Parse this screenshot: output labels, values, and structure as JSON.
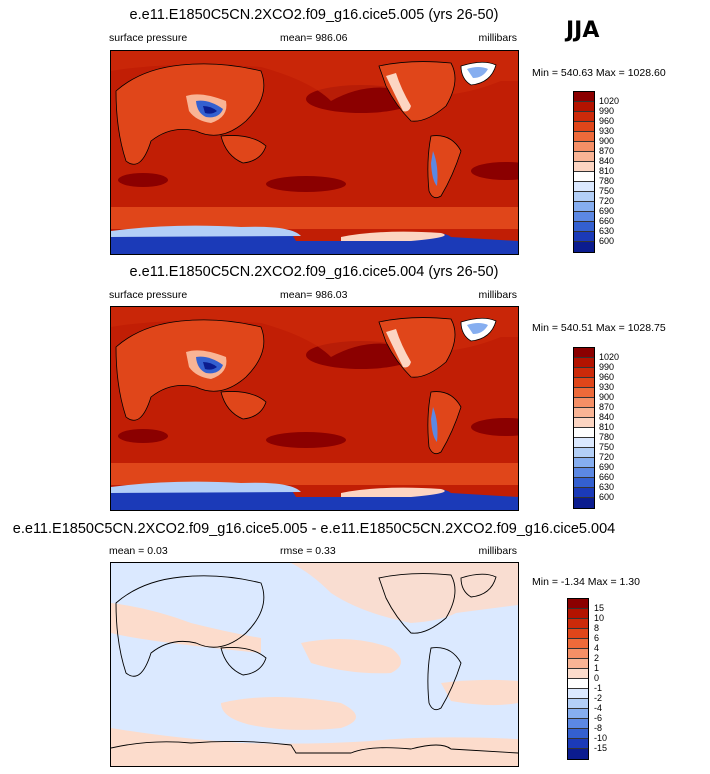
{
  "season": "JJA",
  "panels": [
    {
      "title": "e.e11.E1850C5CN.2XCO2.f09_g16.cice5.005 (yrs 26-50)",
      "left_label": "surface pressure",
      "center_label": "mean= 986.06",
      "right_label": "millibars",
      "minmax": "Min = 540.63 Max = 1028.60",
      "colorbar_labels": [
        "1020",
        "990",
        "960",
        "930",
        "900",
        "870",
        "840",
        "810",
        "780",
        "750",
        "720",
        "690",
        "660",
        "630",
        "600"
      ],
      "colorbar_colors": [
        "#8b0000",
        "#b31300",
        "#cc2a0a",
        "#e0461a",
        "#ee6a3a",
        "#f58f66",
        "#f9b495",
        "#fcd5c2",
        "#ffffff",
        "#dbe9ff",
        "#b3cff7",
        "#86aef0",
        "#5c88e3",
        "#3460d0",
        "#1b3ab8",
        "#0b1c8f"
      ]
    },
    {
      "title": "e.e11.E1850C5CN.2XCO2.f09_g16.cice5.004 (yrs 26-50)",
      "left_label": "surface pressure",
      "center_label": "mean= 986.03",
      "right_label": "millibars",
      "minmax": "Min = 540.51 Max = 1028.75",
      "colorbar_labels": [
        "1020",
        "990",
        "960",
        "930",
        "900",
        "870",
        "840",
        "810",
        "780",
        "750",
        "720",
        "690",
        "660",
        "630",
        "600"
      ],
      "colorbar_colors": [
        "#8b0000",
        "#b31300",
        "#cc2a0a",
        "#e0461a",
        "#ee6a3a",
        "#f58f66",
        "#f9b495",
        "#fcd5c2",
        "#ffffff",
        "#dbe9ff",
        "#b3cff7",
        "#86aef0",
        "#5c88e3",
        "#3460d0",
        "#1b3ab8",
        "#0b1c8f"
      ]
    },
    {
      "title": "e.e11.E1850C5CN.2XCO2.f09_g16.cice5.005 - e.e11.E1850C5CN.2XCO2.f09_g16.cice5.004",
      "left_label": "mean =  0.03",
      "center_label": "rmse =  0.33",
      "right_label": "millibars",
      "minmax": "Min =  -1.34 Max =   1.30",
      "colorbar_labels": [
        "15",
        "10",
        "8",
        "6",
        "4",
        "2",
        "1",
        "0",
        "-1",
        "-2",
        "-4",
        "-6",
        "-8",
        "-10",
        "-15"
      ],
      "colorbar_colors": [
        "#8b0000",
        "#b31300",
        "#cc2a0a",
        "#e0461a",
        "#ee6a3a",
        "#f58f66",
        "#f9b495",
        "#fcdccc",
        "#ffffff",
        "#dbe9ff",
        "#b3cff7",
        "#86aef0",
        "#5c88e3",
        "#3460d0",
        "#1b3ab8",
        "#0b1c8f"
      ]
    }
  ],
  "chart_data": [
    {
      "type": "heatmap",
      "title": "e.e11.E1850C5CN.2XCO2.f09_g16.cice5.005 (yrs 26-50)",
      "variable": "surface pressure",
      "units": "millibars",
      "season": "JJA",
      "mean": 986.06,
      "min": 540.63,
      "max": 1028.6,
      "levels": [
        600,
        630,
        660,
        690,
        720,
        750,
        780,
        810,
        840,
        870,
        900,
        930,
        960,
        990,
        1020
      ]
    },
    {
      "type": "heatmap",
      "title": "e.e11.E1850C5CN.2XCO2.f09_g16.cice5.004 (yrs 26-50)",
      "variable": "surface pressure",
      "units": "millibars",
      "season": "JJA",
      "mean": 986.03,
      "min": 540.51,
      "max": 1028.75,
      "levels": [
        600,
        630,
        660,
        690,
        720,
        750,
        780,
        810,
        840,
        870,
        900,
        930,
        960,
        990,
        1020
      ]
    },
    {
      "type": "heatmap",
      "title": "e.e11.E1850C5CN.2XCO2.f09_g16.cice5.005 - e.e11.E1850C5CN.2XCO2.f09_g16.cice5.004",
      "units": "millibars",
      "mean": 0.03,
      "rmse": 0.33,
      "min": -1.34,
      "max": 1.3,
      "levels": [
        -15,
        -10,
        -8,
        -6,
        -4,
        -2,
        -1,
        0,
        1,
        2,
        4,
        6,
        8,
        10,
        15
      ]
    }
  ]
}
